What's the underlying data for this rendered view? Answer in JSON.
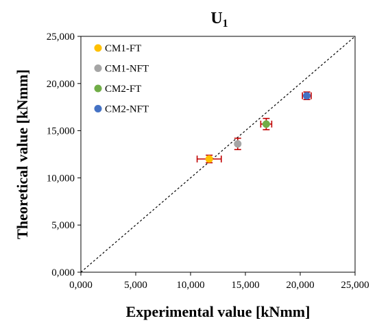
{
  "chart_data": {
    "type": "scatter",
    "title": "U",
    "title_subscript": "1",
    "xlabel": "Experimental value [kNmm]",
    "ylabel": "Theoretical value [kNmm]",
    "xlim": [
      0,
      25000
    ],
    "ylim": [
      0,
      25000
    ],
    "x_ticks": [
      0,
      5000,
      10000,
      15000,
      20000,
      25000
    ],
    "y_ticks": [
      0,
      5000,
      10000,
      15000,
      20000,
      25000
    ],
    "x_tick_labels": [
      "0,000",
      "5,000",
      "10,000",
      "15,000",
      "20,000",
      "25,000"
    ],
    "y_tick_labels": [
      "0,000",
      "5,000",
      "10,000",
      "15,000",
      "20,000",
      "25,000"
    ],
    "grid": false,
    "legend_position": "top-left",
    "reference_line": {
      "style": "dashed",
      "from": [
        0,
        0
      ],
      "to": [
        25000,
        25000
      ]
    },
    "error_bar_color": "#c00000",
    "series": [
      {
        "name": "CM1-FT",
        "color": "#ffc000",
        "x": 11700,
        "y": 12000,
        "x_err": 1100,
        "y_err": 400
      },
      {
        "name": "CM1-NFT",
        "color": "#a5a5a5",
        "x": 14300,
        "y": 13600,
        "x_err": 0,
        "y_err": 600
      },
      {
        "name": "CM2-FT",
        "color": "#70ad47",
        "x": 16900,
        "y": 15700,
        "x_err": 500,
        "y_err": 600
      },
      {
        "name": "CM2-NFT",
        "color": "#4472c4",
        "x": 20600,
        "y": 18700,
        "x_err": 400,
        "y_err": 400
      }
    ]
  }
}
